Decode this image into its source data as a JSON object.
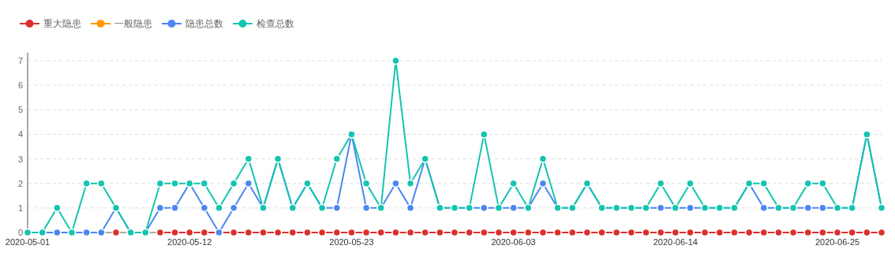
{
  "chart_data": {
    "type": "line",
    "x": [
      "2020-05-01",
      "2020-05-02",
      "2020-05-03",
      "2020-05-04",
      "2020-05-05",
      "2020-05-06",
      "2020-05-07",
      "2020-05-08",
      "2020-05-09",
      "2020-05-10",
      "2020-05-11",
      "2020-05-12",
      "2020-05-13",
      "2020-05-14",
      "2020-05-15",
      "2020-05-16",
      "2020-05-17",
      "2020-05-18",
      "2020-05-19",
      "2020-05-20",
      "2020-05-21",
      "2020-05-22",
      "2020-05-23",
      "2020-05-24",
      "2020-05-25",
      "2020-05-26",
      "2020-05-27",
      "2020-05-28",
      "2020-05-29",
      "2020-05-30",
      "2020-05-31",
      "2020-06-01",
      "2020-06-02",
      "2020-06-03",
      "2020-06-04",
      "2020-06-05",
      "2020-06-06",
      "2020-06-07",
      "2020-06-08",
      "2020-06-09",
      "2020-06-10",
      "2020-06-11",
      "2020-06-12",
      "2020-06-13",
      "2020-06-14",
      "2020-06-15",
      "2020-06-16",
      "2020-06-17",
      "2020-06-18",
      "2020-06-19",
      "2020-06-20",
      "2020-06-21",
      "2020-06-22",
      "2020-06-23",
      "2020-06-24",
      "2020-06-25",
      "2020-06-26",
      "2020-06-27",
      "2020-06-28"
    ],
    "series": [
      {
        "name": "重大隐患",
        "color": "#d9302c",
        "values": [
          null,
          null,
          null,
          null,
          null,
          null,
          0,
          null,
          null,
          0,
          0,
          0,
          0,
          0,
          0,
          0,
          0,
          0,
          0,
          0,
          0,
          0,
          0,
          0,
          0,
          0,
          0,
          0,
          0,
          0,
          0,
          0,
          0,
          0,
          0,
          0,
          0,
          0,
          0,
          0,
          0,
          0,
          0,
          0,
          0,
          0,
          0,
          0,
          0,
          0,
          0,
          0,
          0,
          0,
          0,
          0,
          0,
          0,
          0
        ]
      },
      {
        "name": "一般隐患",
        "color": "#ff9900",
        "values": [
          null,
          null,
          null,
          null,
          null,
          null,
          null,
          null,
          null,
          null,
          null,
          null,
          null,
          null,
          null,
          null,
          null,
          null,
          null,
          null,
          null,
          null,
          null,
          null,
          null,
          null,
          null,
          null,
          null,
          null,
          null,
          null,
          null,
          null,
          null,
          null,
          null,
          null,
          null,
          null,
          null,
          null,
          null,
          null,
          null,
          null,
          null,
          null,
          null,
          null,
          null,
          null,
          null,
          null,
          null,
          null,
          null,
          null,
          null
        ]
      },
      {
        "name": "隐患总数",
        "color": "#4e86f0",
        "values": [
          0,
          0,
          0,
          0,
          0,
          0,
          1,
          0,
          0,
          1,
          1,
          2,
          1,
          0,
          1,
          2,
          1,
          3,
          1,
          2,
          1,
          1,
          4,
          1,
          1,
          2,
          1,
          3,
          1,
          1,
          1,
          1,
          1,
          1,
          1,
          2,
          1,
          1,
          2,
          1,
          1,
          1,
          1,
          1,
          1,
          1,
          1,
          1,
          1,
          2,
          1,
          1,
          1,
          1,
          1,
          1,
          1,
          4,
          1
        ]
      },
      {
        "name": "检查总数",
        "color": "#14c4b0",
        "values": [
          0,
          0,
          1,
          0,
          2,
          2,
          1,
          0,
          0,
          2,
          2,
          2,
          2,
          1,
          2,
          3,
          1,
          3,
          1,
          2,
          1,
          3,
          4,
          2,
          1,
          7,
          2,
          3,
          1,
          1,
          1,
          4,
          1,
          2,
          1,
          3,
          1,
          1,
          2,
          1,
          1,
          1,
          1,
          2,
          1,
          2,
          1,
          1,
          1,
          2,
          2,
          1,
          1,
          2,
          2,
          1,
          1,
          4,
          1
        ]
      }
    ],
    "xlim": [
      "2020-05-01",
      "2020-06-28"
    ],
    "xticks": [
      "2020-05-01",
      "2020-05-12",
      "2020-05-23",
      "2020-06-03",
      "2020-06-14",
      "2020-06-25"
    ],
    "ylim": [
      0,
      7
    ],
    "yticks": [
      0,
      1,
      2,
      3,
      4,
      5,
      6,
      7
    ],
    "grid": "y",
    "legend": "top left",
    "marker": "circle",
    "line_style": "solid"
  }
}
